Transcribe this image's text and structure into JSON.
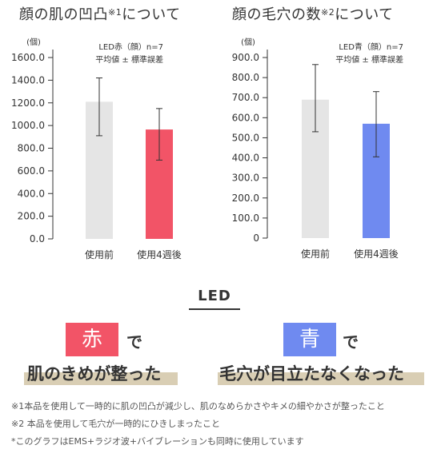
{
  "chart_data": [
    {
      "type": "bar",
      "title": "顔の肌の凹凸",
      "title_sup": "※1",
      "title_suffix": "について",
      "unit": "(個)",
      "legend": [
        "LED赤（顔）n=7",
        "平均値 ± 標準誤差"
      ],
      "categories": [
        "使用前",
        "使用4週後"
      ],
      "values": [
        1210,
        965
      ],
      "errors": [
        [
          910,
          1420
        ],
        [
          695,
          1150
        ]
      ],
      "colors": [
        "#e5e5e5",
        "#f25467"
      ],
      "yticks": [
        "0.0",
        "200.0",
        "400.0",
        "600.0",
        "800.0",
        "1000.0",
        "1200.0",
        "1400.0",
        "1600.0"
      ],
      "ylim": [
        0,
        1600
      ]
    },
    {
      "type": "bar",
      "title": "顔の毛穴の数",
      "title_sup": "※2",
      "title_suffix": "について",
      "unit": "(個)",
      "legend": [
        "LED青（顔）n=7",
        "平均値 ± 標準誤差"
      ],
      "categories": [
        "使用前",
        "使用4週後"
      ],
      "values": [
        690,
        570
      ],
      "errors": [
        [
          530,
          865
        ],
        [
          405,
          730
        ]
      ],
      "colors": [
        "#e5e5e5",
        "#6f8af0"
      ],
      "yticks": [
        "0",
        "100.0",
        "200.0",
        "300.0",
        "400.0",
        "500.0",
        "600.0",
        "700.0",
        "800.0",
        "900.0"
      ],
      "ylim": [
        0,
        900
      ]
    }
  ],
  "led": {
    "title": "LED",
    "red_label": "赤",
    "red_particle": "で",
    "red_result": "肌のきめが整った",
    "blue_label": "青",
    "blue_particle": "で",
    "blue_result": "毛穴が目立たなくなった",
    "red_color": "#f25467",
    "blue_color": "#6f8af0",
    "highlight_color": "#d9ceb4"
  },
  "footnotes": [
    "※1本品を使用して一時的に肌の凹凸が減少し、肌のなめらかさやキメの細やかさが整ったこと",
    "※2 本品を使用して毛穴が一時的にひきしまったこと",
    "*このグラフはEMS+ラジオ波+バイブレーションも同時に使用しています"
  ]
}
